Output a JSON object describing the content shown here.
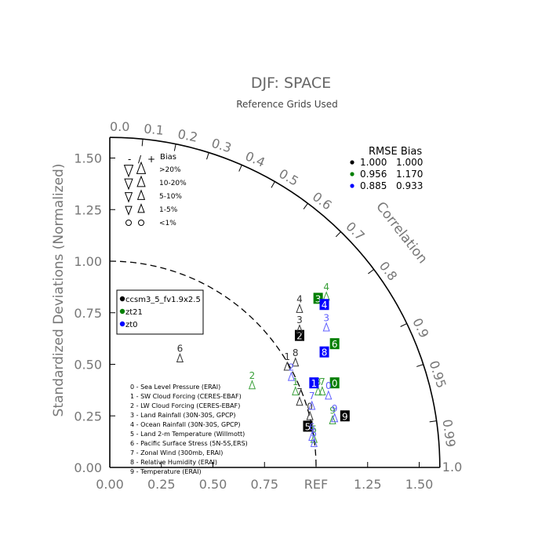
{
  "chart_data": {
    "type": "taylor_diagram",
    "title": "DJF: SPACE",
    "subtitle": "Reference Grids Used",
    "ylabel": "Standardized Deviations (Normalized)",
    "angular_label": "Correlation",
    "std_range": [
      0,
      1.6
    ],
    "std_ticks": [
      "0.00",
      "0.25",
      "0.50",
      "0.75",
      "REF",
      "1.25",
      "1.50"
    ],
    "std_tick_values": [
      0,
      0.25,
      0.5,
      0.75,
      1.0,
      1.25,
      1.5
    ],
    "y_tick_labels": [
      "0.00",
      "0.25",
      "0.50",
      "0.75",
      "1.00",
      "1.25",
      "1.50"
    ],
    "correlation_ticks": [
      {
        "r": 0.0,
        "label": "0.0"
      },
      {
        "r": 0.1,
        "label": "0.1"
      },
      {
        "r": 0.2,
        "label": "0.2"
      },
      {
        "r": 0.3,
        "label": "0.3"
      },
      {
        "r": 0.4,
        "label": "0.4"
      },
      {
        "r": 0.5,
        "label": "0.5"
      },
      {
        "r": 0.6,
        "label": "0.6"
      },
      {
        "r": 0.7,
        "label": "0.7"
      },
      {
        "r": 0.8,
        "label": "0.8"
      },
      {
        "r": 0.9,
        "label": "0.9"
      },
      {
        "r": 0.95,
        "label": "0.95"
      },
      {
        "r": 0.99,
        "label": "0.99"
      },
      {
        "r": 1.0,
        "label": "1.0"
      }
    ],
    "reference_arc_std": 1.0,
    "bias_legend": {
      "header_left": "-",
      "header_sep": "/",
      "header_right": "+",
      "header_bias": "Bias",
      "rows": [
        {
          "label": ">20%",
          "size": 1.0
        },
        {
          "label": "10-20%",
          "size": 0.8
        },
        {
          "label": "5-10%",
          "size": 0.6
        },
        {
          "label": "1-5%",
          "size": 0.45
        },
        {
          "label": "<1%",
          "size": 0.0
        }
      ]
    },
    "rmse_table": {
      "header": "RMSE  Bias",
      "rows": [
        {
          "color": "#000000",
          "rmse": "1.000",
          "bias": "1.000"
        },
        {
          "color": "#007f00",
          "rmse": "0.956",
          "bias": "1.170"
        },
        {
          "color": "#0000ff",
          "rmse": "0.885",
          "bias": "0.933"
        }
      ]
    },
    "series": [
      {
        "name": "ccsm3_5_fv1.9x2.5",
        "color": "#000000",
        "outline": "#333333",
        "points": [
          {
            "id": "0",
            "x": 0.97,
            "y": 0.28,
            "filled": false
          },
          {
            "id": "1",
            "x": 0.86,
            "y": 0.52,
            "filled": false
          },
          {
            "id": "2",
            "x": 0.92,
            "y": 0.64,
            "filled": true
          },
          {
            "id": "3",
            "x": 0.92,
            "y": 0.7,
            "filled": false
          },
          {
            "id": "4",
            "x": 0.92,
            "y": 0.8,
            "filled": false
          },
          {
            "id": "5",
            "x": 0.96,
            "y": 0.2,
            "filled": true
          },
          {
            "id": "6",
            "x": 0.34,
            "y": 0.56,
            "filled": false
          },
          {
            "id": "7",
            "x": 0.92,
            "y": 0.35,
            "filled": false
          },
          {
            "id": "8",
            "x": 0.9,
            "y": 0.54,
            "filled": false
          },
          {
            "id": "9",
            "x": 1.14,
            "y": 0.25,
            "filled": true
          }
        ]
      },
      {
        "name": "zt21",
        "color": "#007f00",
        "outline": "#3aa03a",
        "points": [
          {
            "id": "0",
            "x": 1.09,
            "y": 0.41,
            "filled": true
          },
          {
            "id": "1",
            "x": 0.9,
            "y": 0.4,
            "filled": false
          },
          {
            "id": "2",
            "x": 0.69,
            "y": 0.43,
            "filled": false
          },
          {
            "id": "3",
            "x": 1.01,
            "y": 0.82,
            "filled": true
          },
          {
            "id": "4",
            "x": 1.05,
            "y": 0.86,
            "filled": false
          },
          {
            "id": "5",
            "x": 0.99,
            "y": 0.17,
            "filled": false
          },
          {
            "id": "6",
            "x": 1.09,
            "y": 0.6,
            "filled": true
          },
          {
            "id": "7",
            "x": 1.03,
            "y": 0.4,
            "filled": false
          },
          {
            "id": "8",
            "x": 1.01,
            "y": 0.4,
            "filled": false
          },
          {
            "id": "9",
            "x": 1.08,
            "y": 0.26,
            "filled": false
          }
        ]
      },
      {
        "name": "zt0",
        "color": "#0000ff",
        "outline": "#6060ff",
        "points": [
          {
            "id": "0",
            "x": 1.06,
            "y": 0.38,
            "filled": false
          },
          {
            "id": "1",
            "x": 0.99,
            "y": 0.41,
            "filled": true
          },
          {
            "id": "2",
            "x": 0.88,
            "y": 0.47,
            "filled": false
          },
          {
            "id": "3",
            "x": 1.05,
            "y": 0.71,
            "filled": false
          },
          {
            "id": "4",
            "x": 1.04,
            "y": 0.79,
            "filled": true
          },
          {
            "id": "5",
            "x": 0.99,
            "y": 0.15,
            "filled": false
          },
          {
            "id": "6",
            "x": 0.98,
            "y": 0.18,
            "filled": false
          },
          {
            "id": "7",
            "x": 0.98,
            "y": 0.33,
            "filled": false
          },
          {
            "id": "8",
            "x": 1.04,
            "y": 0.56,
            "filled": true
          },
          {
            "id": "9",
            "x": 1.09,
            "y": 0.27,
            "filled": false
          }
        ]
      }
    ],
    "variables": [
      "0 - Sea Level Pressure (ERAI)",
      "1 - SW Cloud Forcing (CERES-EBAF)",
      "2 - LW Cloud Forcing (CERES-EBAF)",
      "3 - Land Rainfall (30N-30S, GPCP)",
      "4 - Ocean Rainfall (30N-30S, GPCP)",
      "5 - Land 2-m Temperature (Willmott)",
      "6 - Pacific Surface Stress (5N-5S,ERS)",
      "7 - Zonal Wind (300mb, ERAI)",
      "8 - Relative Humidity (ERAI)",
      "9 - Temperature (ERAI)"
    ]
  }
}
